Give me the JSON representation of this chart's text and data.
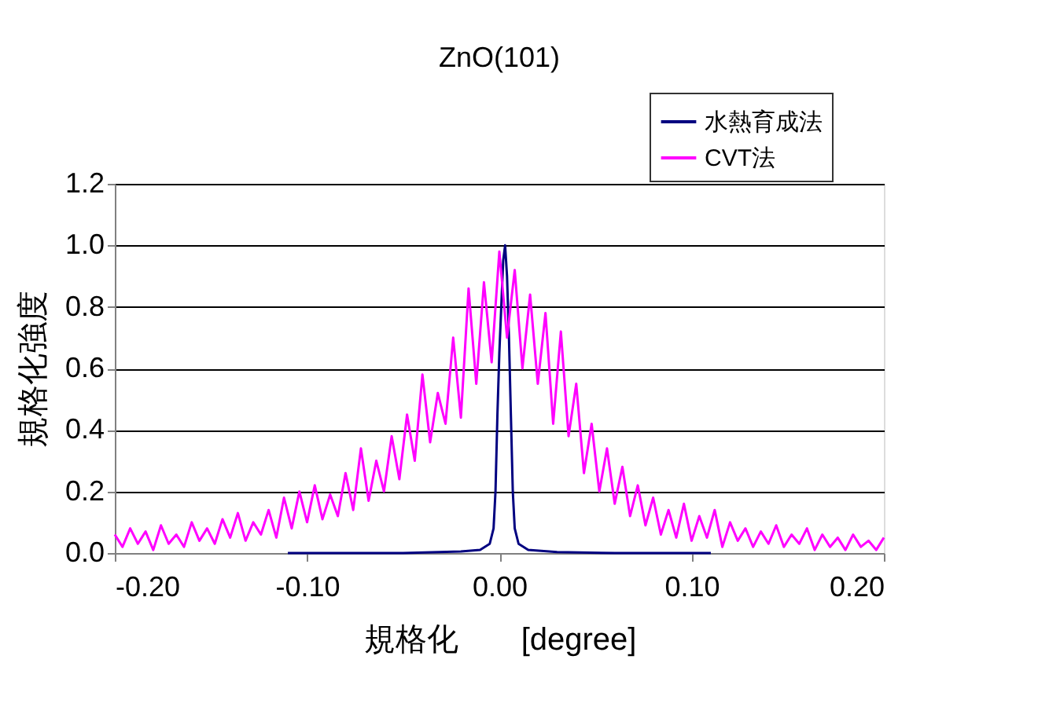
{
  "chart_data": {
    "type": "line",
    "title": "ZnO(101)",
    "xlabel": "規格化　　[degree]",
    "ylabel": "規格化強度",
    "xlim": [
      -0.2,
      0.2
    ],
    "xticks": [
      {
        "value": -0.2,
        "label": "-0.20"
      },
      {
        "value": -0.1,
        "label": "-0.10"
      },
      {
        "value": 0,
        "label": "0.00"
      },
      {
        "value": 0.1,
        "label": "0.10"
      },
      {
        "value": 0.2,
        "label": "0.20"
      }
    ],
    "ylim": [
      0,
      1.2
    ],
    "yticks": [
      {
        "value": 0,
        "label": "0.0"
      },
      {
        "value": 0.2,
        "label": "0.2"
      },
      {
        "value": 0.4,
        "label": "0.4"
      },
      {
        "value": 0.6,
        "label": "0.6"
      },
      {
        "value": 0.8,
        "label": "0.8"
      },
      {
        "value": 1,
        "label": "1.0"
      },
      {
        "value": 1.2,
        "label": "1.2"
      }
    ],
    "grid": "y",
    "legend": "top right",
    "marker": "none",
    "line_style": "solid",
    "series": [
      {
        "name": "水熱育成法",
        "color": "#000080",
        "x": [
          -0.11,
          -0.05,
          -0.02,
          -0.01,
          -0.005,
          -0.003,
          -0.002,
          -0.001,
          0.0,
          0.001,
          0.002,
          0.003,
          0.004,
          0.005,
          0.006,
          0.007,
          0.008,
          0.01,
          0.015,
          0.03,
          0.06,
          0.11
        ],
        "values": [
          0,
          0,
          0.005,
          0.01,
          0.03,
          0.08,
          0.2,
          0.45,
          0.65,
          0.8,
          0.95,
          1.0,
          0.9,
          0.7,
          0.45,
          0.2,
          0.08,
          0.03,
          0.01,
          0.003,
          0,
          0
        ]
      },
      {
        "name": "CVT法",
        "color": "#ff00ff",
        "x": [
          -0.2,
          -0.196,
          -0.192,
          -0.188,
          -0.184,
          -0.18,
          -0.176,
          -0.172,
          -0.168,
          -0.164,
          -0.16,
          -0.156,
          -0.152,
          -0.148,
          -0.144,
          -0.14,
          -0.136,
          -0.132,
          -0.128,
          -0.124,
          -0.12,
          -0.116,
          -0.112,
          -0.108,
          -0.104,
          -0.1,
          -0.096,
          -0.092,
          -0.088,
          -0.084,
          -0.08,
          -0.076,
          -0.072,
          -0.068,
          -0.064,
          -0.06,
          -0.056,
          -0.052,
          -0.048,
          -0.044,
          -0.04,
          -0.036,
          -0.032,
          -0.028,
          -0.024,
          -0.02,
          -0.016,
          -0.012,
          -0.008,
          -0.004,
          0.0,
          0.004,
          0.008,
          0.012,
          0.016,
          0.02,
          0.024,
          0.028,
          0.032,
          0.036,
          0.04,
          0.044,
          0.048,
          0.052,
          0.056,
          0.06,
          0.064,
          0.068,
          0.072,
          0.076,
          0.08,
          0.084,
          0.088,
          0.092,
          0.096,
          0.1,
          0.104,
          0.108,
          0.112,
          0.116,
          0.12,
          0.124,
          0.128,
          0.132,
          0.136,
          0.14,
          0.144,
          0.148,
          0.152,
          0.156,
          0.16,
          0.164,
          0.168,
          0.172,
          0.176,
          0.18,
          0.184,
          0.188,
          0.192,
          0.196,
          0.2
        ],
        "values": [
          0.06,
          0.02,
          0.08,
          0.03,
          0.07,
          0.01,
          0.09,
          0.03,
          0.06,
          0.02,
          0.1,
          0.04,
          0.08,
          0.03,
          0.11,
          0.05,
          0.13,
          0.04,
          0.1,
          0.06,
          0.14,
          0.05,
          0.18,
          0.08,
          0.2,
          0.1,
          0.22,
          0.11,
          0.19,
          0.12,
          0.26,
          0.14,
          0.34,
          0.17,
          0.3,
          0.2,
          0.38,
          0.24,
          0.45,
          0.3,
          0.58,
          0.36,
          0.52,
          0.42,
          0.7,
          0.44,
          0.86,
          0.55,
          0.88,
          0.62,
          0.98,
          0.7,
          0.92,
          0.6,
          0.84,
          0.55,
          0.78,
          0.42,
          0.72,
          0.38,
          0.55,
          0.26,
          0.42,
          0.2,
          0.34,
          0.16,
          0.28,
          0.12,
          0.22,
          0.09,
          0.18,
          0.06,
          0.14,
          0.05,
          0.16,
          0.04,
          0.12,
          0.05,
          0.14,
          0.02,
          0.1,
          0.04,
          0.08,
          0.02,
          0.07,
          0.03,
          0.09,
          0.02,
          0.06,
          0.03,
          0.08,
          0.01,
          0.06,
          0.02,
          0.05,
          0.01,
          0.06,
          0.02,
          0.04,
          0.01,
          0.05
        ]
      }
    ]
  }
}
